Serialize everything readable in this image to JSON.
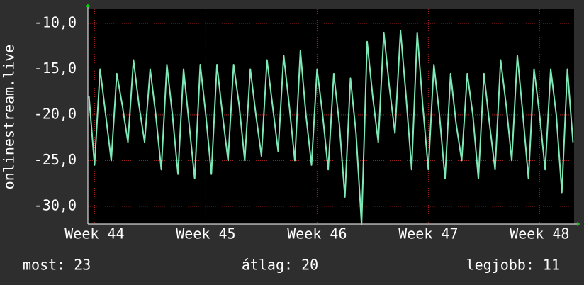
{
  "chart_data": {
    "type": "line",
    "y_label": "onlinestream.live",
    "x": [
      43.95,
      44,
      44.05,
      44.1,
      44.15,
      44.2,
      44.25,
      44.3,
      44.35,
      44.4,
      44.45,
      44.5,
      44.55,
      44.6,
      44.65,
      44.7,
      44.75,
      44.8,
      44.85,
      44.9,
      44.95,
      45,
      45.05,
      45.1,
      45.15,
      45.2,
      45.25,
      45.3,
      45.35,
      45.4,
      45.45,
      45.5,
      45.55,
      45.6,
      45.65,
      45.7,
      45.75,
      45.8,
      45.85,
      45.9,
      45.95,
      46,
      46.05,
      46.1,
      46.15,
      46.2,
      46.25,
      46.3,
      46.35,
      46.4,
      46.45,
      46.5,
      46.55,
      46.6,
      46.65,
      46.7,
      46.75,
      46.8,
      46.85,
      46.9,
      46.95,
      47,
      47.05,
      47.1,
      47.15,
      47.2,
      47.25,
      47.3,
      47.35,
      47.4,
      47.45,
      47.5,
      47.55,
      47.6,
      47.65,
      47.7,
      47.75,
      47.8,
      47.85,
      47.9,
      47.95,
      48,
      48.05,
      48.1,
      48.15,
      48.2,
      48.25,
      48.3
    ],
    "series": [
      {
        "color": "#7ee8b6",
        "values": [
          -18,
          -25.5,
          -15,
          -20,
          -25,
          -15.5,
          -19,
          -23,
          -14,
          -19,
          -23,
          -15,
          -20,
          -26,
          -14.5,
          -20,
          -26.5,
          -15,
          -21,
          -27,
          -14.5,
          -20,
          -26.5,
          -14.5,
          -20,
          -25,
          -14.5,
          -19,
          -25,
          -15,
          -20,
          -24.5,
          -14,
          -19,
          -24,
          -13.5,
          -19,
          -25,
          -13,
          -20,
          -25.5,
          -15,
          -20,
          -26,
          -15.5,
          -21,
          -29,
          -16,
          -22,
          -32,
          -12,
          -18,
          -23,
          -11,
          -17,
          -22,
          -10.8,
          -18,
          -26,
          -11,
          -19,
          -26,
          -14.5,
          -20,
          -27,
          -15.5,
          -21,
          -25,
          -15.5,
          -20,
          -27,
          -15.5,
          -21,
          -26,
          -14,
          -19,
          -25,
          -13.5,
          -20,
          -27,
          -15,
          -20,
          -26,
          -15,
          -20,
          -28.5,
          -15,
          -23
        ]
      }
    ],
    "xlim": [
      43.94,
      48.31
    ],
    "ylim": [
      -31.95,
      -8.45
    ],
    "xticks": [
      {
        "value": 44,
        "label": "Week 44"
      },
      {
        "value": 45,
        "label": "Week 45"
      },
      {
        "value": 46,
        "label": "Week 46"
      },
      {
        "value": 47,
        "label": "Week 47"
      },
      {
        "value": 48,
        "label": "Week 48"
      }
    ],
    "yticks": [
      {
        "value": -30,
        "label": "-30,0"
      },
      {
        "value": -25,
        "label": "-25,0"
      },
      {
        "value": -20,
        "label": "-20,0"
      },
      {
        "value": -15,
        "label": "-15,0"
      },
      {
        "value": -10,
        "label": "-10,0"
      }
    ],
    "grid": true,
    "footer": [
      "most: 23",
      "átlag: 20",
      "legjobb: 11"
    ]
  }
}
